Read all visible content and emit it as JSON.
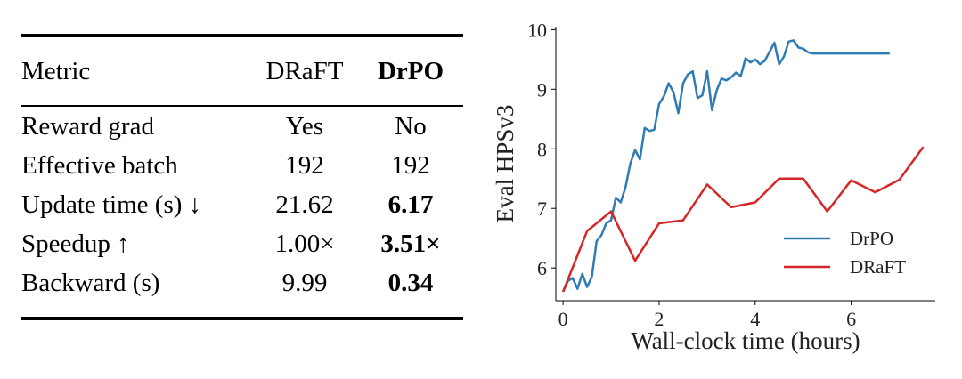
{
  "table": {
    "headers": [
      "Metric",
      "DRaFT",
      "DrPO"
    ],
    "rows": [
      {
        "metric": "Reward grad",
        "draft": "Yes",
        "drpo": "No",
        "drpo_bold": false
      },
      {
        "metric": "Effective batch",
        "draft": "192",
        "drpo": "192",
        "drpo_bold": false
      },
      {
        "metric": "Update time (s) ↓",
        "draft": "21.62",
        "drpo": "6.17",
        "drpo_bold": true
      },
      {
        "metric": "Speedup ↑",
        "draft": "1.00×",
        "drpo": "3.51×",
        "drpo_bold": true
      },
      {
        "metric": "Backward (s)",
        "draft": "9.99",
        "drpo": "0.34",
        "drpo_bold": true
      }
    ]
  },
  "chart_data": {
    "type": "line",
    "xlabel": "Wall-clock time (hours)",
    "ylabel": "Eval HPSv3",
    "xlim": [
      -0.15,
      7.75
    ],
    "ylim": [
      5.45,
      10.05
    ],
    "xticks": [
      0,
      2,
      4,
      6
    ],
    "yticks": [
      6,
      7,
      8,
      9,
      10
    ],
    "grid": false,
    "legend_position": "lower-right",
    "series": [
      {
        "name": "DrPO",
        "color": "#2f7bb6",
        "x": [
          0.0,
          0.1,
          0.2,
          0.3,
          0.4,
          0.5,
          0.6,
          0.7,
          0.8,
          0.9,
          1.0,
          1.1,
          1.2,
          1.3,
          1.4,
          1.5,
          1.6,
          1.7,
          1.8,
          1.9,
          2.0,
          2.1,
          2.2,
          2.3,
          2.4,
          2.5,
          2.6,
          2.7,
          2.8,
          2.9,
          3.0,
          3.1,
          3.2,
          3.3,
          3.4,
          3.5,
          3.6,
          3.7,
          3.8,
          3.9,
          4.0,
          4.1,
          4.2,
          4.3,
          4.4,
          4.5,
          4.6,
          4.7,
          4.8,
          4.9,
          5.0,
          5.1,
          5.2,
          5.3,
          5.4,
          5.5,
          5.6,
          5.7,
          5.8,
          5.9,
          6.0,
          6.1,
          6.2,
          6.3,
          6.4,
          6.5,
          6.6,
          6.7,
          6.8
        ],
        "y": [
          5.6,
          5.78,
          5.83,
          5.65,
          5.9,
          5.68,
          5.85,
          6.45,
          6.55,
          6.75,
          6.8,
          7.18,
          7.1,
          7.35,
          7.75,
          7.98,
          7.82,
          8.35,
          8.3,
          8.32,
          8.75,
          8.88,
          9.1,
          8.95,
          8.6,
          9.1,
          9.25,
          9.3,
          8.85,
          8.9,
          9.3,
          8.65,
          8.98,
          9.18,
          9.15,
          9.2,
          9.28,
          9.22,
          9.52,
          9.45,
          9.5,
          9.42,
          9.48,
          9.63,
          9.78,
          9.42,
          9.55,
          9.8,
          9.82,
          9.7,
          9.68,
          9.62,
          9.6,
          9.6,
          9.6,
          9.6,
          9.6,
          9.6,
          9.6,
          9.6,
          9.6,
          9.6,
          9.6,
          9.6,
          9.6,
          9.6,
          9.6,
          9.6,
          9.6
        ]
      },
      {
        "name": "DRaFT",
        "color": "#d62728",
        "x": [
          0.0,
          0.5,
          1.0,
          1.5,
          2.0,
          2.5,
          3.0,
          3.5,
          4.0,
          4.5,
          5.0,
          5.5,
          6.0,
          6.5,
          7.0,
          7.5
        ],
        "y": [
          5.6,
          6.62,
          6.95,
          6.12,
          6.75,
          6.8,
          7.4,
          7.02,
          7.1,
          7.5,
          7.5,
          6.95,
          7.47,
          7.27,
          7.48,
          8.03
        ]
      }
    ]
  }
}
